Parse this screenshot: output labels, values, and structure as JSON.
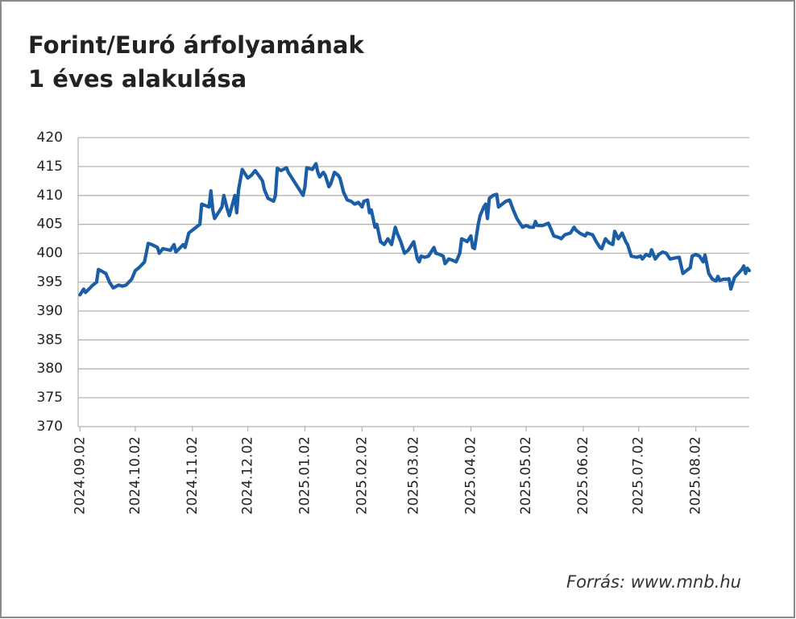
{
  "chart_data": {
    "type": "line",
    "title": [
      "Forint/Euró árfolyamának",
      "1 éves alakulása"
    ],
    "source": "Forrás: www.mnb.hu",
    "color": "#1b5ea6",
    "grid": true,
    "ylim": [
      370,
      420
    ],
    "yticks": [
      370,
      375,
      380,
      385,
      390,
      395,
      400,
      405,
      410,
      415,
      420
    ],
    "xlim": [
      "2024.09.01",
      "2025.08.31"
    ],
    "xticks": [
      "2024.09.02",
      "2024.10.02",
      "2024.11.02",
      "2024.12.02",
      "2025.01.02",
      "2025.02.02",
      "2025.03.02",
      "2025.04.02",
      "2025.05.02",
      "2025.06.02",
      "2025.07.02",
      "2025.08.02"
    ],
    "x": [
      "2024.09.02",
      "2024.09.04",
      "2024.09.05",
      "2024.09.09",
      "2024.09.11",
      "2024.09.12",
      "2024.09.16",
      "2024.09.18",
      "2024.09.20",
      "2024.09.23",
      "2024.09.25",
      "2024.09.27",
      "2024.09.30",
      "2024.10.02",
      "2024.10.04",
      "2024.10.07",
      "2024.10.09",
      "2024.10.11",
      "2024.10.14",
      "2024.10.15",
      "2024.10.17",
      "2024.10.21",
      "2024.10.23",
      "2024.10.24",
      "2024.10.28",
      "2024.10.29",
      "2024.10.31",
      "2024.11.04",
      "2024.11.06",
      "2024.11.07",
      "2024.11.11",
      "2024.11.12",
      "2024.11.13",
      "2024.11.14",
      "2024.11.18",
      "2024.11.19",
      "2024.11.21",
      "2024.11.22",
      "2024.11.25",
      "2024.11.26",
      "2024.11.27",
      "2024.11.29",
      "2024.12.02",
      "2024.12.04",
      "2024.12.06",
      "2024.12.09",
      "2024.12.10",
      "2024.12.11",
      "2024.12.13",
      "2024.12.16",
      "2024.12.17",
      "2024.12.18",
      "2024.12.20",
      "2024.12.23",
      "2024.12.24",
      "2024.12.27",
      "2024.12.30",
      "2025.01.01",
      "2025.01.02",
      "2025.01.03",
      "2025.01.06",
      "2025.01.08",
      "2025.01.09",
      "2025.01.10",
      "2025.01.12",
      "2025.01.13",
      "2025.01.15",
      "2025.01.16",
      "2025.01.18",
      "2025.01.20",
      "2025.01.21",
      "2025.01.23",
      "2025.01.25",
      "2025.01.27",
      "2025.01.29",
      "2025.01.31",
      "2025.02.02",
      "2025.02.03",
      "2025.02.05",
      "2025.02.06",
      "2025.02.07",
      "2025.02.09",
      "2025.02.10",
      "2025.02.12",
      "2025.02.14",
      "2025.02.16",
      "2025.02.18",
      "2025.02.20",
      "2025.02.21",
      "2025.02.23",
      "2025.02.25",
      "2025.02.27",
      "2025.03.02",
      "2025.03.04",
      "2025.03.05",
      "2025.03.06",
      "2025.03.08",
      "2025.03.10",
      "2025.03.13",
      "2025.03.14",
      "2025.03.16",
      "2025.03.18",
      "2025.03.19",
      "2025.03.21",
      "2025.03.23",
      "2025.03.25",
      "2025.03.27",
      "2025.03.28",
      "2025.03.30",
      "2025.03.31",
      "2025.04.02",
      "2025.04.03",
      "2025.04.04",
      "2025.04.06",
      "2025.04.07",
      "2025.04.09",
      "2025.04.10",
      "2025.04.11",
      "2025.04.12",
      "2025.04.14",
      "2025.04.16",
      "2025.04.17",
      "2025.04.19",
      "2025.04.21",
      "2025.04.23",
      "2025.04.25",
      "2025.04.27",
      "2025.04.28",
      "2025.04.30",
      "2025.05.02",
      "2025.05.04",
      "2025.05.06",
      "2025.05.07",
      "2025.05.08",
      "2025.05.11",
      "2025.05.14",
      "2025.05.15",
      "2025.05.17",
      "2025.05.20",
      "2025.05.21",
      "2025.05.23",
      "2025.05.26",
      "2025.05.28",
      "2025.05.29",
      "2025.05.31",
      "2025.06.03",
      "2025.06.04",
      "2025.06.07",
      "2025.06.09",
      "2025.06.11",
      "2025.06.12",
      "2025.06.14",
      "2025.06.16",
      "2025.06.18",
      "2025.06.19",
      "2025.06.21",
      "2025.06.23",
      "2025.06.25",
      "2025.06.26",
      "2025.06.28",
      "2025.07.01",
      "2025.07.03",
      "2025.07.04",
      "2025.07.06",
      "2025.07.08",
      "2025.07.09",
      "2025.07.11",
      "2025.07.13",
      "2025.07.15",
      "2025.07.17",
      "2025.07.19",
      "2025.07.22",
      "2025.07.24",
      "2025.07.26",
      "2025.07.28",
      "2025.07.30",
      "2025.07.31",
      "2025.08.02",
      "2025.08.04",
      "2025.08.06",
      "2025.08.07",
      "2025.08.09",
      "2025.08.11",
      "2025.08.13",
      "2025.08.14",
      "2025.08.15",
      "2025.08.17",
      "2025.08.19",
      "2025.08.20",
      "2025.08.21",
      "2025.08.23",
      "2025.08.25",
      "2025.08.27",
      "2025.08.28",
      "2025.08.29",
      "2025.08.30",
      "2025.08.31"
    ],
    "values": [
      392.8,
      393.8,
      393.2,
      394.5,
      395,
      397.2,
      396.5,
      395,
      394,
      394.5,
      394.3,
      394.5,
      395.5,
      397,
      397.5,
      398.5,
      401.7,
      401.5,
      401,
      400,
      400.8,
      400.5,
      401.5,
      400.2,
      401.5,
      401,
      403.5,
      404.5,
      405,
      408.5,
      408,
      410.8,
      407.5,
      406,
      408,
      410,
      407.5,
      406.5,
      410,
      407,
      411,
      414.5,
      413,
      413.5,
      414.3,
      413,
      412.5,
      411,
      409.5,
      409,
      410,
      414.7,
      414.3,
      414.8,
      414,
      412.5,
      411,
      410,
      411.5,
      414.8,
      414.5,
      415.5,
      414,
      413.2,
      414,
      413.5,
      411.5,
      412,
      414,
      413.5,
      413,
      410.5,
      409.2,
      409,
      408.5,
      408.8,
      408,
      409,
      409.2,
      407,
      407.5,
      404.5,
      405,
      402,
      401.5,
      402.5,
      401.5,
      404.5,
      403.5,
      402,
      400,
      400.5,
      402,
      399,
      398.5,
      399.5,
      399.3,
      399.5,
      401,
      400,
      399.8,
      399.5,
      398.2,
      399,
      398.8,
      398.5,
      400,
      402.5,
      402.2,
      402,
      403,
      401,
      400.8,
      405,
      406.5,
      408,
      408.5,
      406,
      409.5,
      410,
      410.2,
      408,
      408.5,
      409,
      409.2,
      407.5,
      406,
      405.5,
      404.5,
      404.8,
      404.5,
      404.5,
      405.5,
      404.8,
      404.8,
      405.2,
      404.5,
      403,
      402.7,
      402.5,
      403.2,
      403.5,
      404.5,
      404,
      403.5,
      403,
      403.5,
      403.2,
      402,
      401,
      400.8,
      402.5,
      401.8,
      401.5,
      403.8,
      402.5,
      403.5,
      402,
      401.5,
      399.5,
      399.3,
      399.5,
      399,
      399.8,
      399.5,
      400.6,
      399,
      399.8,
      400.2,
      400,
      399,
      399.2,
      399.3,
      396.5,
      397,
      397.5,
      399.5,
      399.8,
      399.5,
      398.5,
      399.7,
      396.5,
      395.5,
      395.2,
      396,
      395.3,
      395.5,
      395.5,
      395.6,
      393.8,
      395.8,
      396.5,
      397.2,
      397.8,
      396.5,
      397.4,
      397
    ]
  }
}
